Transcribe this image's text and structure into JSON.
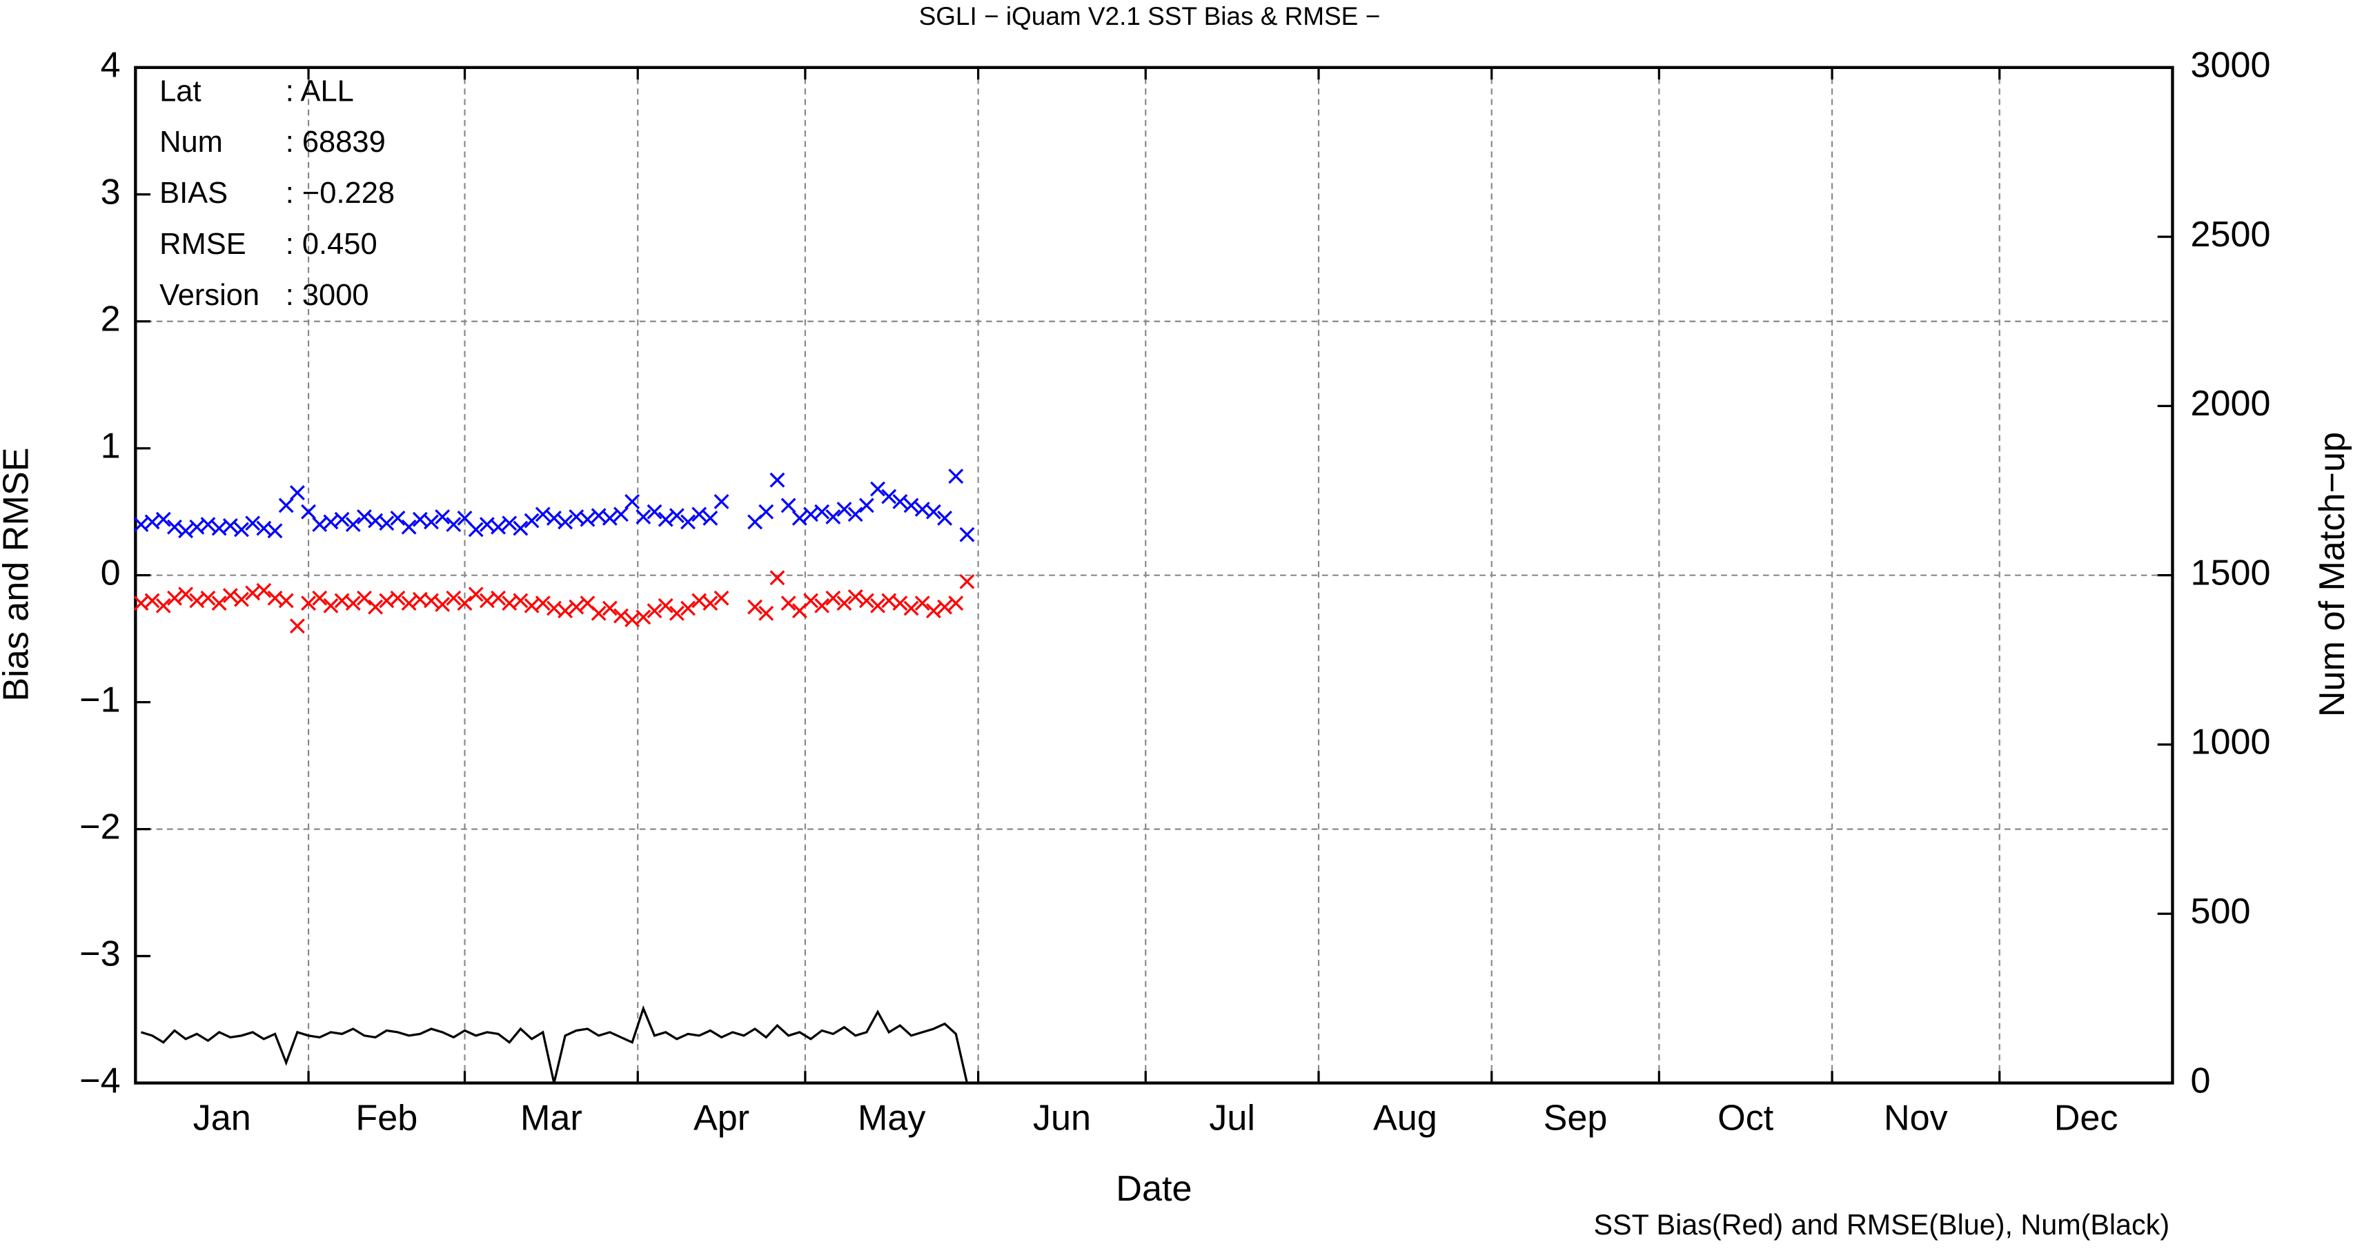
{
  "chart_data": {
    "type": "line",
    "title": "SGLI − iQuam V2.1 SST Bias & RMSE  −",
    "x_label": "Date",
    "y_label": "Bias and RMSE",
    "y2_label": "Num of Match−up",
    "footer": "SST Bias(Red) and RMSE(Blue), Num(Black)",
    "stats": [
      {
        "label": "Lat",
        "value": ": ALL"
      },
      {
        "label": "Num",
        "value": ": 68839"
      },
      {
        "label": "BIAS",
        "value": ": −0.228"
      },
      {
        "label": "RMSE",
        "value": ": 0.450"
      },
      {
        "label": "Version",
        "value": ": 3000"
      }
    ],
    "categories": [
      "Jan",
      "Feb",
      "Mar",
      "Apr",
      "May",
      "Jun",
      "Jul",
      "Aug",
      "Sep",
      "Oct",
      "Nov",
      "Dec"
    ],
    "xlim": [
      0,
      365
    ],
    "xticks": [
      0,
      31,
      59,
      90,
      120,
      151,
      181,
      212,
      243,
      273,
      304,
      334,
      365
    ],
    "ylim": [
      -4,
      4
    ],
    "yticks": [
      {
        "value": -4,
        "label": "−4"
      },
      {
        "value": -3,
        "label": "−3"
      },
      {
        "value": -2,
        "label": "−2"
      },
      {
        "value": -1,
        "label": "−1"
      },
      0,
      1,
      2,
      3,
      4
    ],
    "ygrid": [
      -2,
      0,
      2
    ],
    "y2lim": [
      0,
      3000
    ],
    "y2ticks": [
      0,
      500,
      1000,
      1500,
      2000,
      2500,
      3000
    ],
    "grid": true,
    "x": [
      1,
      3,
      5,
      7,
      9,
      11,
      13,
      15,
      17,
      19,
      21,
      23,
      25,
      27,
      29,
      31,
      33,
      35,
      37,
      39,
      41,
      43,
      45,
      47,
      49,
      51,
      53,
      55,
      57,
      59,
      61,
      63,
      65,
      67,
      69,
      71,
      73,
      75,
      77,
      79,
      81,
      83,
      85,
      87,
      89,
      91,
      93,
      95,
      97,
      99,
      101,
      103,
      105,
      107,
      109,
      111,
      113,
      115,
      117,
      119,
      121,
      123,
      125,
      127,
      129,
      131,
      133,
      135,
      137,
      139,
      141,
      143,
      145,
      147,
      149
    ],
    "series": [
      {
        "name": "Bias",
        "color": "#ff0000",
        "type": "scatter",
        "values": [
          -0.22,
          -0.2,
          -0.24,
          -0.18,
          -0.15,
          -0.2,
          -0.18,
          -0.22,
          -0.16,
          -0.19,
          -0.14,
          -0.12,
          -0.18,
          -0.2,
          -0.4,
          -0.22,
          -0.18,
          -0.24,
          -0.2,
          -0.22,
          -0.18,
          -0.25,
          -0.2,
          -0.18,
          -0.22,
          -0.19,
          -0.2,
          -0.23,
          -0.18,
          -0.22,
          -0.15,
          -0.2,
          -0.18,
          -0.22,
          -0.2,
          -0.24,
          -0.22,
          -0.26,
          -0.28,
          -0.25,
          -0.22,
          -0.3,
          -0.26,
          -0.32,
          -0.35,
          -0.33,
          -0.28,
          -0.24,
          -0.3,
          -0.26,
          -0.2,
          -0.22,
          -0.18,
          null,
          null,
          -0.25,
          -0.3,
          -0.02,
          -0.22,
          -0.28,
          -0.2,
          -0.24,
          -0.18,
          -0.22,
          -0.17,
          -0.2,
          -0.24,
          -0.2,
          -0.22,
          -0.26,
          -0.22,
          -0.28,
          -0.25,
          -0.22,
          -0.05
        ]
      },
      {
        "name": "RMSE",
        "color": "#0000ff",
        "type": "scatter",
        "values": [
          0.4,
          0.42,
          0.44,
          0.38,
          0.35,
          0.38,
          0.4,
          0.37,
          0.39,
          0.36,
          0.41,
          0.37,
          0.35,
          0.55,
          0.65,
          0.5,
          0.4,
          0.42,
          0.44,
          0.4,
          0.46,
          0.43,
          0.41,
          0.45,
          0.38,
          0.44,
          0.42,
          0.46,
          0.4,
          0.45,
          0.36,
          0.4,
          0.38,
          0.41,
          0.37,
          0.43,
          0.48,
          0.45,
          0.42,
          0.46,
          0.44,
          0.47,
          0.45,
          0.48,
          0.58,
          0.46,
          0.5,
          0.44,
          0.47,
          0.42,
          0.48,
          0.45,
          0.58,
          null,
          null,
          0.42,
          0.5,
          0.75,
          0.55,
          0.45,
          0.48,
          0.5,
          0.46,
          0.52,
          0.48,
          0.55,
          0.68,
          0.62,
          0.58,
          0.55,
          0.52,
          0.5,
          0.45,
          0.78,
          0.32
        ]
      },
      {
        "name": "Num",
        "color": "#000000",
        "type": "line",
        "axis": "y2",
        "values": [
          150,
          140,
          120,
          155,
          130,
          145,
          125,
          150,
          135,
          140,
          150,
          130,
          145,
          60,
          150,
          140,
          135,
          150,
          145,
          160,
          140,
          135,
          155,
          150,
          140,
          145,
          160,
          150,
          135,
          155,
          140,
          150,
          145,
          120,
          160,
          130,
          150,
          0,
          140,
          155,
          160,
          140,
          150,
          135,
          120,
          220,
          140,
          150,
          130,
          145,
          140,
          155,
          135,
          150,
          140,
          160,
          135,
          170,
          140,
          150,
          130,
          155,
          145,
          165,
          140,
          150,
          210,
          150,
          170,
          140,
          150,
          160,
          175,
          145,
          0
        ]
      }
    ]
  }
}
